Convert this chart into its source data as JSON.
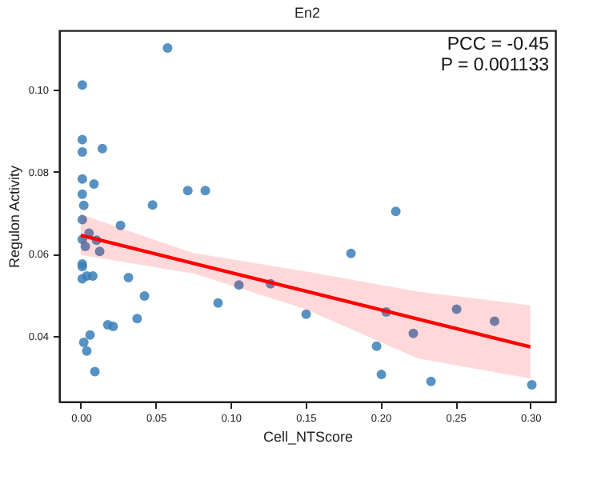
{
  "chart_data": {
    "type": "scatter",
    "title": "En2",
    "xlabel": "Cell_NTScore",
    "ylabel": "Regulon Activity",
    "xlim": [
      -0.0144,
      0.3167
    ],
    "ylim": [
      0.024,
      0.1144
    ],
    "xticks": [
      {
        "value": 0,
        "label": "0.00"
      },
      {
        "value": 0.05,
        "label": "0.05"
      },
      {
        "value": 0.1,
        "label": "0.10"
      },
      {
        "value": 0.15,
        "label": "0.15"
      },
      {
        "value": 0.2,
        "label": "0.20"
      },
      {
        "value": 0.25,
        "label": "0.25"
      },
      {
        "value": 0.3,
        "label": "0.30"
      }
    ],
    "yticks": [
      {
        "value": 0.04,
        "label": "0.04"
      },
      {
        "value": 0.06,
        "label": "0.06"
      },
      {
        "value": 0.08,
        "label": "0.08"
      },
      {
        "value": 0.1,
        "label": "0.10"
      }
    ],
    "grid": false,
    "annotations": [
      "PCC = -0.45",
      "P = 0.001133"
    ],
    "series": [
      {
        "type": "scatter",
        "color": "#3a7fb8",
        "marker": "circle",
        "x": [
          0.0579,
          0.001,
          0.001,
          0.001,
          0.0144,
          0.001,
          0.0088,
          0.001,
          0.002,
          0.001,
          0.0714,
          0.0831,
          0.0479,
          0.0265,
          0.001,
          0.0055,
          0.003,
          0.0105,
          0.0126,
          0.001,
          0.001,
          0.001,
          0.008,
          0.004,
          0.0318,
          0.1055,
          0.1266,
          0.0425,
          0.0916,
          0.0376,
          0.018,
          0.0216,
          0.0062,
          0.002,
          0.004,
          0.0094,
          0.1504,
          0.1803,
          0.2102,
          0.2038,
          0.1974,
          0.2006,
          0.2219,
          0.2337,
          0.2508,
          0.2761,
          0.301
        ],
        "values": [
          0.1101,
          0.1011,
          0.0878,
          0.0848,
          0.0856,
          0.0782,
          0.077,
          0.0745,
          0.0718,
          0.0683,
          0.0754,
          0.0754,
          0.0719,
          0.0669,
          0.0635,
          0.065,
          0.0618,
          0.0633,
          0.0606,
          0.0575,
          0.0569,
          0.0539,
          0.0546,
          0.0546,
          0.0542,
          0.0524,
          0.0527,
          0.0497,
          0.048,
          0.0442,
          0.0427,
          0.0423,
          0.0402,
          0.0384,
          0.0363,
          0.0313,
          0.0453,
          0.0601,
          0.0703,
          0.0458,
          0.0375,
          0.0306,
          0.0406,
          0.0289,
          0.0465,
          0.0436,
          0.0281
        ]
      },
      {
        "type": "line",
        "color": "#ff0000",
        "x": [
          0,
          0.075,
          0.15,
          0.225,
          0.3
        ],
        "values": [
          0.0645,
          0.0577,
          0.0509,
          0.0441,
          0.0373
        ],
        "lower": [
          0.0597,
          0.0552,
          0.0465,
          0.0345,
          0.0296
        ],
        "upper": [
          0.0696,
          0.0602,
          0.0557,
          0.0508,
          0.0475
        ]
      }
    ]
  }
}
